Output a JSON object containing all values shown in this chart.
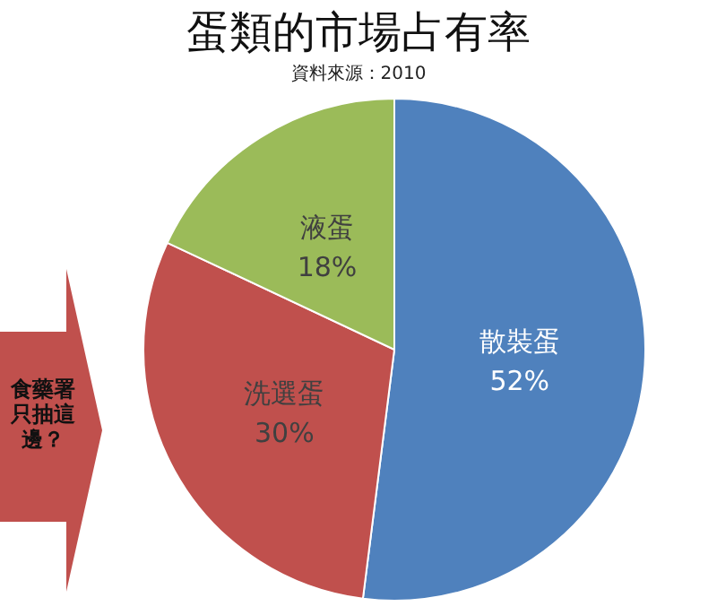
{
  "chart_data": {
    "type": "pie",
    "title": "蛋類的市場占有率",
    "subtitle": "資料來源：2010",
    "categories": [
      "散裝蛋",
      "洗選蛋",
      "液蛋"
    ],
    "values": [
      52,
      30,
      18
    ],
    "value_labels": [
      "52%",
      "30%",
      "18%"
    ],
    "colors": [
      "#4f81bd",
      "#c0504d",
      "#9bbb59"
    ],
    "annotations": [
      "食藥署只抽這邊？"
    ],
    "legend": false
  }
}
